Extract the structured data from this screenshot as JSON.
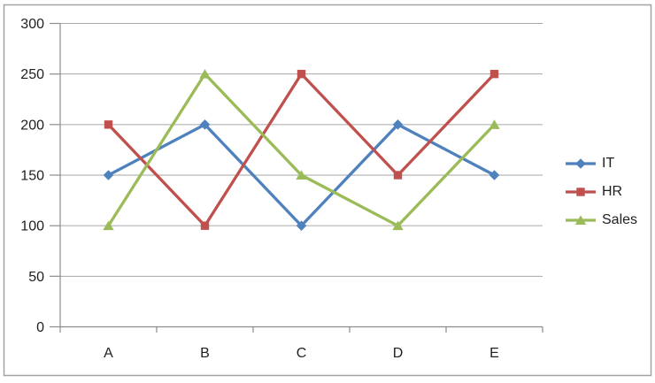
{
  "chart_data": {
    "type": "line",
    "categories": [
      "A",
      "B",
      "C",
      "D",
      "E"
    ],
    "series": [
      {
        "name": "IT",
        "color": "#4F81BD",
        "marker": "diamond",
        "values": [
          150,
          200,
          100,
          200,
          150
        ]
      },
      {
        "name": "HR",
        "color": "#C0504D",
        "marker": "square",
        "values": [
          200,
          100,
          250,
          150,
          250
        ]
      },
      {
        "name": "Sales",
        "color": "#9BBB59",
        "marker": "triangle",
        "values": [
          100,
          250,
          150,
          100,
          200
        ]
      }
    ],
    "ylim": [
      0,
      300
    ],
    "y_ticks": [
      0,
      50,
      100,
      150,
      200,
      250,
      300
    ],
    "grid": true,
    "legend_position": "right",
    "colors": {
      "gridline": "#A6A6A6",
      "axis_line": "#8C8C8C",
      "tick_text": "#1F1F1F",
      "frame_border": "#A3A3A3",
      "background": "#FFFFFF"
    }
  }
}
